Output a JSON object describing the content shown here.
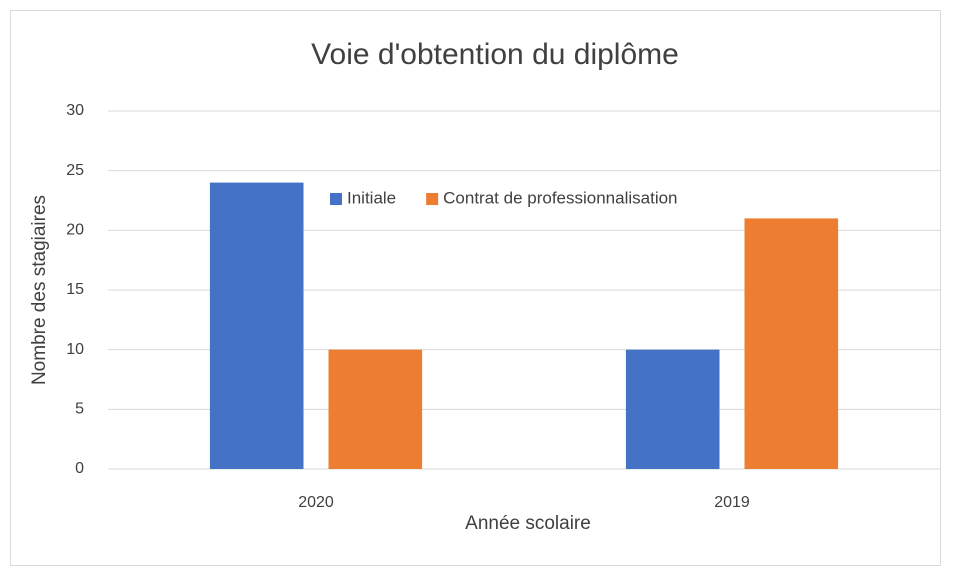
{
  "chart_data": {
    "type": "bar",
    "title": "Voie d'obtention du diplôme",
    "x_label": "Année scolaire",
    "y_label": "Nombre des stagiaires",
    "categories": [
      "2020",
      "2019"
    ],
    "series": [
      {
        "name": "Initiale",
        "color": "#4472c4",
        "values": [
          24,
          10
        ]
      },
      {
        "name": "Contrat de professionnalisation",
        "color": "#ed7d31",
        "values": [
          10,
          21
        ]
      }
    ],
    "ylim": [
      0,
      30
    ],
    "yticks": [
      0,
      5,
      10,
      15,
      20,
      25,
      30
    ],
    "grid": true,
    "legend": "top"
  }
}
